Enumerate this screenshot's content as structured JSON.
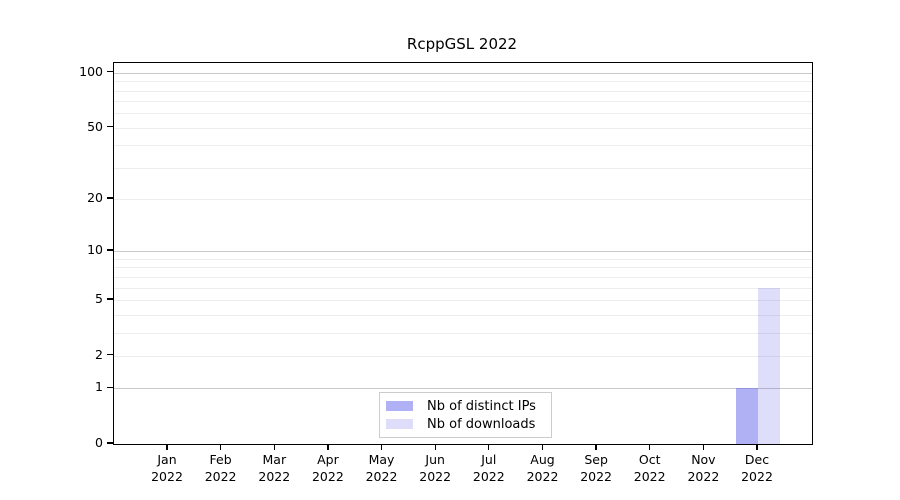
{
  "chart_data": {
    "type": "bar",
    "title": "RcppGSL 2022",
    "x_months": [
      "Jan",
      "Feb",
      "Mar",
      "Apr",
      "May",
      "Jun",
      "Jul",
      "Aug",
      "Sep",
      "Oct",
      "Nov",
      "Dec"
    ],
    "x_year": "2022",
    "y_ticks": [
      0,
      1,
      2,
      5,
      10,
      20,
      50,
      100
    ],
    "yscale": "log1p",
    "ylim": [
      0,
      113
    ],
    "grid": {
      "major": [
        1,
        10,
        100
      ],
      "minor": [
        2,
        3,
        4,
        5,
        6,
        7,
        8,
        9,
        20,
        30,
        40,
        50,
        60,
        70,
        80,
        90
      ],
      "major_color": "#c9c9c9",
      "minor_color": "#ededed"
    },
    "legend_position": "bottom-center-inside",
    "series": [
      {
        "name": "Nb of distinct IPs",
        "color": "#5a5aeb7a",
        "values": [
          0,
          0,
          0,
          0,
          0,
          0,
          0,
          0,
          0,
          0,
          0,
          1
        ]
      },
      {
        "name": "Nb of downloads",
        "color": "#5a5aeb33",
        "values": [
          0,
          0,
          0,
          0,
          0,
          0,
          0,
          0,
          0,
          0,
          0,
          6
        ]
      }
    ]
  }
}
